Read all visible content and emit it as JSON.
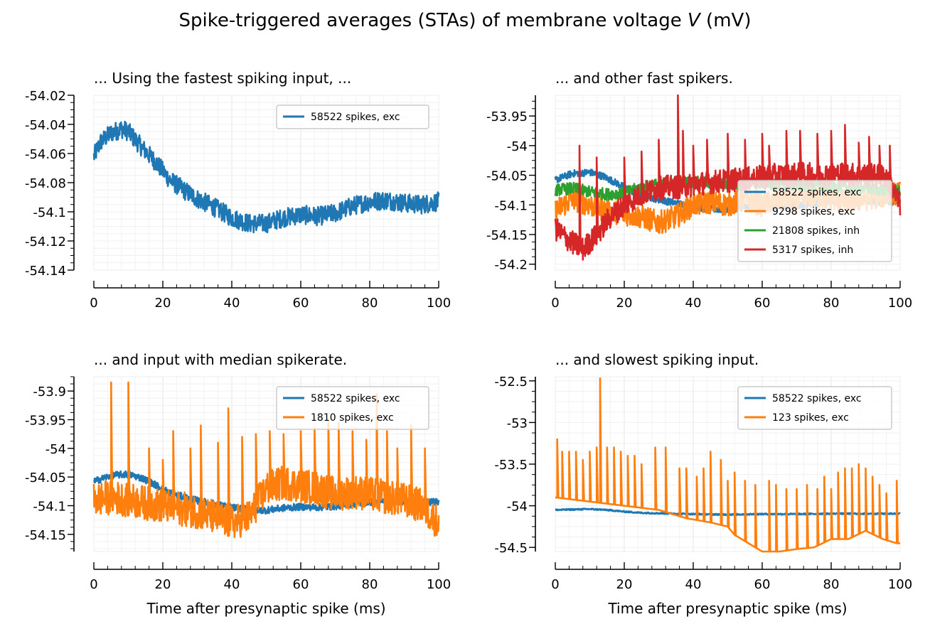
{
  "figure": {
    "suptitle_prefix": "Spike-triggered averages (STAs) of membrane voltage ",
    "suptitle_var": "V",
    "suptitle_suffix": " (mV)",
    "colors": {
      "blue": "#1f77b4",
      "orange": "#ff7f0e",
      "green": "#2ca02c",
      "red": "#d62728",
      "grid": "#ebebeb"
    }
  },
  "chart_data": [
    {
      "type": "line",
      "title": "... Using the fastest spiking input, ...",
      "xlabel": "",
      "ylabel": "",
      "xlim": [
        0,
        100
      ],
      "ylim": [
        -54.14,
        -54.02
      ],
      "xticks": [
        0,
        20,
        40,
        60,
        80,
        100
      ],
      "yticks": [
        -54.14,
        -54.12,
        -54.1,
        -54.08,
        -54.06,
        -54.04,
        -54.02
      ],
      "ytick_labels": [
        "-54.14",
        "-54.12",
        "-54.1",
        "-54.08",
        "-54.06",
        "-54.04",
        "-54.02"
      ],
      "grid": true,
      "legend_position": "top-right",
      "series": [
        {
          "name": "58522 spikes, exc",
          "color": "#1f77b4",
          "x": [
            0,
            2,
            5,
            8,
            10,
            14,
            18,
            22,
            26,
            30,
            35,
            40,
            45,
            50,
            55,
            60,
            65,
            70,
            75,
            80,
            85,
            90,
            95,
            100
          ],
          "y": [
            -54.062,
            -54.052,
            -54.046,
            -54.043,
            -54.045,
            -54.056,
            -54.066,
            -54.078,
            -54.085,
            -54.091,
            -54.097,
            -54.104,
            -54.108,
            -54.108,
            -54.104,
            -54.102,
            -54.103,
            -54.101,
            -54.096,
            -54.093,
            -54.092,
            -54.094,
            -54.095,
            -54.093
          ],
          "noise": 0.0065,
          "spikes": []
        }
      ]
    },
    {
      "type": "line",
      "title": "... and other fast spikers.",
      "xlabel": "",
      "ylabel": "",
      "xlim": [
        0,
        100
      ],
      "ylim": [
        -54.21,
        -53.915
      ],
      "xticks": [
        0,
        20,
        40,
        60,
        80,
        100
      ],
      "yticks": [
        -54.2,
        -54.15,
        -54.1,
        -54.05,
        -54.0,
        -53.95
      ],
      "ytick_labels": [
        "-54.2",
        "-54.15",
        "-54.1",
        "-54.05",
        "-54",
        "-53.95"
      ],
      "grid": true,
      "legend_position": "center-right",
      "series": [
        {
          "name": "58522 spikes, exc",
          "color": "#1f77b4",
          "x": [
            0,
            5,
            10,
            14,
            18,
            22,
            26,
            30,
            35,
            40,
            45,
            50,
            55,
            60,
            65,
            70,
            75,
            80,
            85,
            90,
            95,
            100
          ],
          "y": [
            -54.058,
            -54.047,
            -54.045,
            -54.052,
            -54.064,
            -54.077,
            -54.085,
            -54.091,
            -54.097,
            -54.103,
            -54.107,
            -54.108,
            -54.104,
            -54.102,
            -54.103,
            -54.101,
            -54.097,
            -54.094,
            -54.092,
            -54.093,
            -54.095,
            -54.093
          ],
          "noise": 0.006,
          "spikes": []
        },
        {
          "name": "9298 spikes, exc",
          "color": "#ff7f0e",
          "x": [
            0,
            5,
            10,
            15,
            20,
            25,
            30,
            35,
            40,
            45,
            50,
            55,
            60,
            65,
            70,
            75,
            80,
            85,
            90,
            95,
            100
          ],
          "y": [
            -54.11,
            -54.09,
            -54.1,
            -54.11,
            -54.115,
            -54.12,
            -54.13,
            -54.12,
            -54.1,
            -54.095,
            -54.1,
            -54.09,
            -54.1,
            -54.09,
            -54.095,
            -54.085,
            -54.09,
            -54.095,
            -54.09,
            -54.085,
            -54.08
          ],
          "noise": 0.02,
          "spikes": []
        },
        {
          "name": "21808 spikes, inh",
          "color": "#2ca02c",
          "x": [
            0,
            5,
            10,
            15,
            20,
            25,
            30,
            35,
            40,
            45,
            50,
            55,
            60,
            65,
            70,
            75,
            80,
            85,
            90,
            95,
            100
          ],
          "y": [
            -54.075,
            -54.072,
            -54.078,
            -54.082,
            -54.08,
            -54.07,
            -54.065,
            -54.06,
            -54.062,
            -54.063,
            -54.065,
            -54.066,
            -54.064,
            -54.066,
            -54.066,
            -54.068,
            -54.069,
            -54.07,
            -54.072,
            -54.075,
            -54.078
          ],
          "noise": 0.01,
          "spikes": []
        },
        {
          "name": "5317 spikes, inh",
          "color": "#d62728",
          "x": [
            0,
            4,
            8,
            12,
            16,
            20,
            24,
            28,
            32,
            36,
            40,
            44,
            48,
            52,
            56,
            60,
            64,
            68,
            72,
            76,
            80,
            84,
            88,
            92,
            96,
            100
          ],
          "y": [
            -54.14,
            -54.16,
            -54.175,
            -54.15,
            -54.12,
            -54.1,
            -54.085,
            -54.075,
            -54.07,
            -54.07,
            -54.066,
            -54.062,
            -54.06,
            -54.058,
            -54.056,
            -54.053,
            -54.05,
            -54.05,
            -54.048,
            -54.05,
            -54.048,
            -54.048,
            -54.05,
            -54.05,
            -54.052,
            -54.1
          ],
          "noise": 0.02,
          "spikes": [
            [
              7,
              -54.0
            ],
            [
              12,
              -54.02
            ],
            [
              20,
              -54.02
            ],
            [
              25,
              -54.01
            ],
            [
              30,
              -53.99
            ],
            [
              35.5,
              -53.915
            ],
            [
              37,
              -53.975
            ],
            [
              40,
              -54.0
            ],
            [
              44,
              -53.99
            ],
            [
              50,
              -53.98
            ],
            [
              55,
              -53.99
            ],
            [
              60,
              -53.98
            ],
            [
              62,
              -54.0
            ],
            [
              67,
              -53.975
            ],
            [
              71,
              -53.975
            ],
            [
              76,
              -53.98
            ],
            [
              80,
              -53.975
            ],
            [
              84,
              -53.965
            ],
            [
              88,
              -53.995
            ],
            [
              91,
              -53.985
            ],
            [
              94,
              -54.0
            ],
            [
              97,
              -54.0
            ]
          ]
        }
      ]
    },
    {
      "type": "line",
      "title": "... and input with median spikerate.",
      "xlabel": "Time after presynaptic spike (ms)",
      "ylabel": "",
      "xlim": [
        0,
        100
      ],
      "ylim": [
        -54.18,
        -53.875
      ],
      "xticks": [
        0,
        20,
        40,
        60,
        80,
        100
      ],
      "yticks": [
        -54.15,
        -54.1,
        -54.05,
        -54.0,
        -53.95,
        -53.9
      ],
      "ytick_labels": [
        "-54.15",
        "-54.1",
        "-54.05",
        "-54",
        "-53.95",
        "-53.9"
      ],
      "grid": true,
      "legend_position": "top-right",
      "series": [
        {
          "name": "58522 spikes, exc",
          "color": "#1f77b4",
          "x": [
            0,
            5,
            10,
            14,
            18,
            22,
            26,
            30,
            35,
            40,
            45,
            50,
            55,
            60,
            65,
            70,
            75,
            80,
            85,
            90,
            95,
            100
          ],
          "y": [
            -54.058,
            -54.047,
            -54.045,
            -54.052,
            -54.064,
            -54.077,
            -54.085,
            -54.091,
            -54.097,
            -54.103,
            -54.107,
            -54.108,
            -54.104,
            -54.102,
            -54.103,
            -54.101,
            -54.097,
            -54.094,
            -54.092,
            -54.093,
            -54.095,
            -54.093
          ],
          "noise": 0.006,
          "spikes": []
        },
        {
          "name": "1810 spikes, exc",
          "color": "#ff7f0e",
          "x": [
            0,
            5,
            10,
            15,
            20,
            25,
            30,
            35,
            40,
            45,
            50,
            55,
            60,
            65,
            70,
            75,
            80,
            85,
            90,
            95,
            100
          ],
          "y": [
            -54.09,
            -54.085,
            -54.09,
            -54.095,
            -54.1,
            -54.105,
            -54.11,
            -54.12,
            -54.13,
            -54.12,
            -54.07,
            -54.06,
            -54.065,
            -54.07,
            -54.08,
            -54.075,
            -54.08,
            -54.085,
            -54.09,
            -54.1,
            -54.13
          ],
          "noise": 0.03,
          "spikes": [
            [
              5,
              -53.885
            ],
            [
              10,
              -53.885
            ],
            [
              16,
              -54.0
            ],
            [
              20,
              -54.02
            ],
            [
              23,
              -53.97
            ],
            [
              28,
              -54.0
            ],
            [
              31,
              -53.96
            ],
            [
              36,
              -53.99
            ],
            [
              39,
              -53.93
            ],
            [
              43,
              -53.98
            ],
            [
              47,
              -53.975
            ],
            [
              51,
              -53.97
            ],
            [
              55,
              -53.975
            ],
            [
              60,
              -53.97
            ],
            [
              64,
              -53.965
            ],
            [
              68,
              -53.95
            ],
            [
              71,
              -53.955
            ],
            [
              75,
              -53.97
            ],
            [
              79,
              -53.985
            ],
            [
              82,
              -53.905
            ],
            [
              85,
              -53.97
            ],
            [
              88,
              -54.0
            ],
            [
              92,
              -53.96
            ],
            [
              96,
              -54.0
            ]
          ]
        }
      ]
    },
    {
      "type": "line",
      "title": "... and slowest spiking input.",
      "xlabel": "Time after presynaptic spike (ms)",
      "ylabel": "",
      "xlim": [
        0,
        100
      ],
      "ylim": [
        -54.55,
        -52.45
      ],
      "xticks": [
        0,
        20,
        40,
        60,
        80,
        100
      ],
      "yticks": [
        -54.5,
        -54.0,
        -53.5,
        -53.0,
        -52.5
      ],
      "ytick_labels": [
        "-54.5",
        "-54",
        "-53.5",
        "-53",
        "-52.5"
      ],
      "grid": true,
      "legend_position": "top-right",
      "series": [
        {
          "name": "58522 spikes, exc",
          "color": "#1f77b4",
          "x": [
            0,
            5,
            10,
            15,
            20,
            25,
            30,
            40,
            50,
            60,
            70,
            80,
            90,
            100
          ],
          "y": [
            -54.05,
            -54.045,
            -54.04,
            -54.05,
            -54.07,
            -54.085,
            -54.09,
            -54.1,
            -54.105,
            -54.1,
            -54.1,
            -54.095,
            -54.095,
            -54.095
          ],
          "noise": 0.008,
          "spikes": []
        },
        {
          "name": "123 spikes, exc",
          "color": "#ff7f0e",
          "x": [
            0,
            10,
            20,
            30,
            38,
            45,
            50,
            52,
            56,
            60,
            65,
            70,
            75,
            80,
            85,
            90,
            95,
            99,
            100
          ],
          "y": [
            -53.9,
            -53.95,
            -54.0,
            -54.05,
            -54.15,
            -54.2,
            -54.25,
            -54.35,
            -54.45,
            -54.55,
            -54.55,
            -54.52,
            -54.5,
            -54.4,
            -54.4,
            -54.3,
            -54.4,
            -54.45,
            -54.45
          ],
          "noise": 0.0,
          "spikes": [
            [
              0.5,
              -53.2
            ],
            [
              2,
              -53.35
            ],
            [
              4,
              -53.35
            ],
            [
              6,
              -53.35
            ],
            [
              8,
              -53.45
            ],
            [
              10,
              -53.35
            ],
            [
              12,
              -53.3
            ],
            [
              13,
              -52.47
            ],
            [
              15,
              -53.3
            ],
            [
              17,
              -53.3
            ],
            [
              19,
              -53.35
            ],
            [
              21,
              -53.4
            ],
            [
              23,
              -53.4
            ],
            [
              25,
              -53.5
            ],
            [
              29,
              -53.3
            ],
            [
              32,
              -53.3
            ],
            [
              36,
              -53.55
            ],
            [
              38,
              -53.55
            ],
            [
              41,
              -53.65
            ],
            [
              43,
              -53.55
            ],
            [
              45,
              -53.35
            ],
            [
              48,
              -53.45
            ],
            [
              50,
              -53.7
            ],
            [
              52,
              -53.6
            ],
            [
              55,
              -53.7
            ],
            [
              58,
              -53.75
            ],
            [
              62,
              -53.7
            ],
            [
              64,
              -53.75
            ],
            [
              67,
              -53.8
            ],
            [
              70,
              -53.8
            ],
            [
              73,
              -53.75
            ],
            [
              76,
              -53.8
            ],
            [
              78,
              -53.65
            ],
            [
              80,
              -53.8
            ],
            [
              82,
              -53.6
            ],
            [
              84,
              -53.55
            ],
            [
              86,
              -53.55
            ],
            [
              88,
              -53.5
            ],
            [
              90,
              -53.55
            ],
            [
              92,
              -53.65
            ],
            [
              94,
              -53.75
            ],
            [
              96,
              -53.85
            ],
            [
              99,
              -53.7
            ]
          ]
        }
      ]
    }
  ]
}
